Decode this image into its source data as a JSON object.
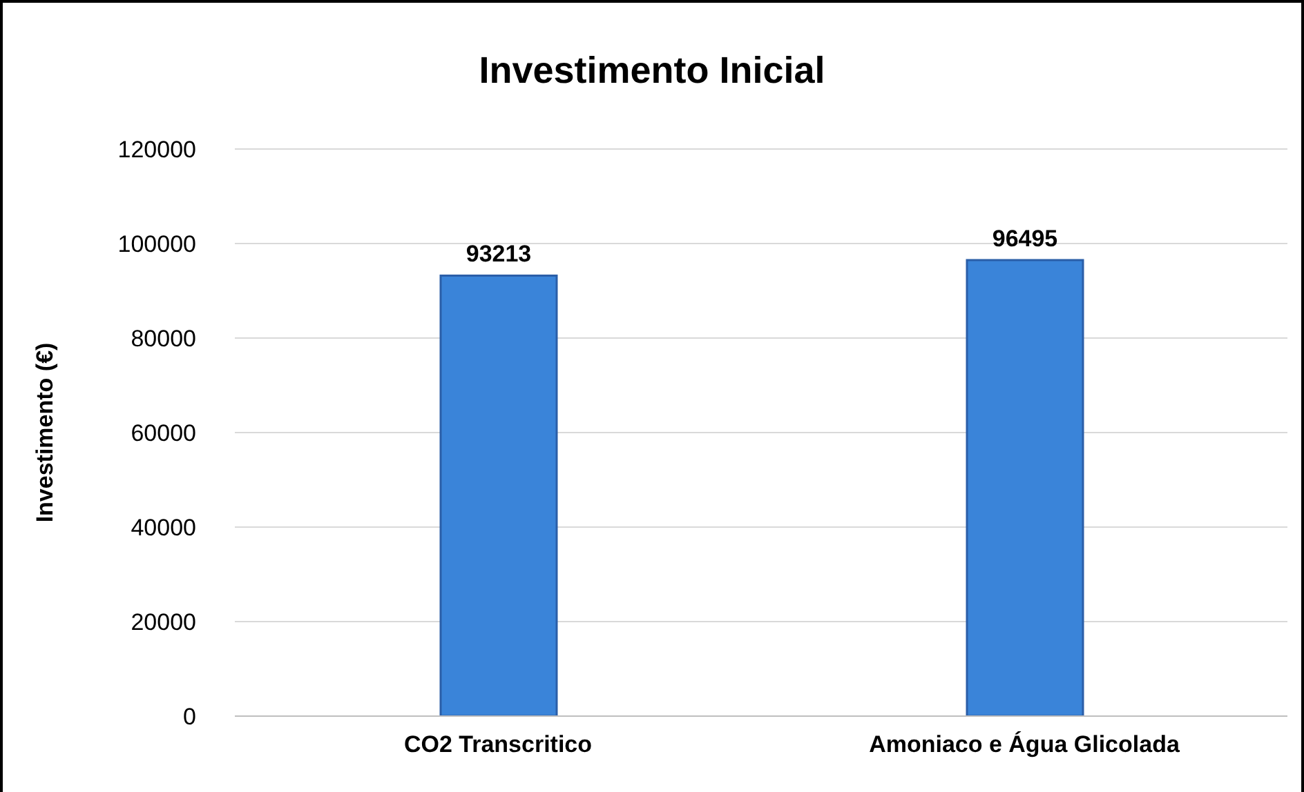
{
  "chart_data": {
    "type": "bar",
    "title": "Investimento Inicial",
    "ylabel": "Investimento (€)",
    "categories": [
      "CO2 Transcritico",
      "Amoniaco e Água Glicolada"
    ],
    "values": [
      93213,
      96495
    ],
    "color": "#3a84d9",
    "ylim": [
      0,
      120000
    ],
    "yticks": [
      0,
      20000,
      40000,
      60000,
      80000,
      100000,
      120000
    ],
    "grid": "y",
    "data_labels": true
  }
}
